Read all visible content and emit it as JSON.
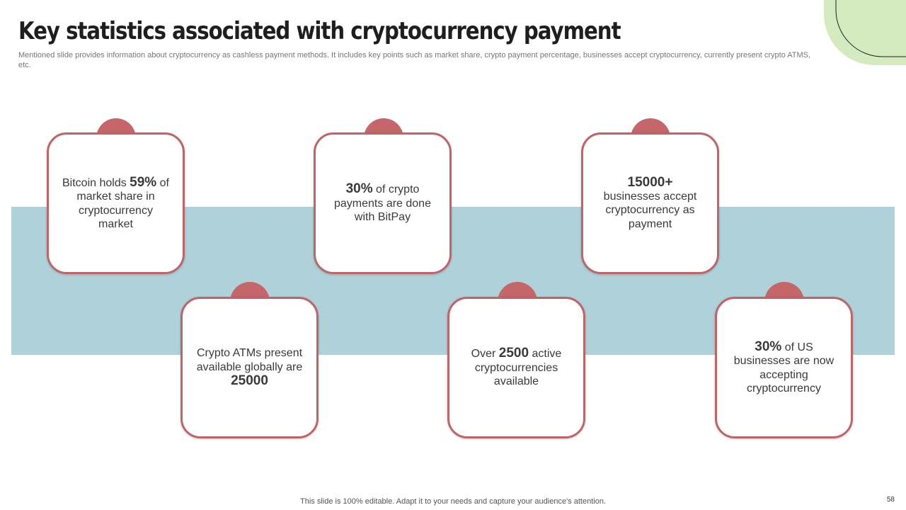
{
  "title": "Key statistics associated with cryptocurrency payment",
  "subtitle": "Mentioned slide provides information about cryptocurrency as cashless payment methods. It includes key points such as market share, crypto payment percentage, businesses accept cryptocurrency, currently present crypto ATMS,  etc.",
  "colors": {
    "accent": "#c4666a",
    "card_border": "#bf6467",
    "band": "#aed1da",
    "corner_blob": "#d4eabf"
  },
  "cards": [
    {
      "pre": "Bitcoin holds ",
      "highlight": "59%",
      "post": " of market share in cryptocurrency market"
    },
    {
      "pre": "",
      "highlight": "30%",
      "post": " of crypto payments are done with BitPay"
    },
    {
      "pre": "",
      "highlight": "15000+",
      "post": "businesses accept cryptocurrency  as payment"
    },
    {
      "pre": "Crypto ATMs present available globally are ",
      "highlight": "25000",
      "post": ""
    },
    {
      "pre": "Over ",
      "highlight": "2500",
      "post": " active cryptocurrencies available"
    },
    {
      "pre": "",
      "highlight": "30%",
      "post": " of US businesses are now accepting cryptocurrency"
    }
  ],
  "footer": "This slide is 100% editable. Adapt it to your needs and capture your audience's attention.",
  "page_number": "58"
}
